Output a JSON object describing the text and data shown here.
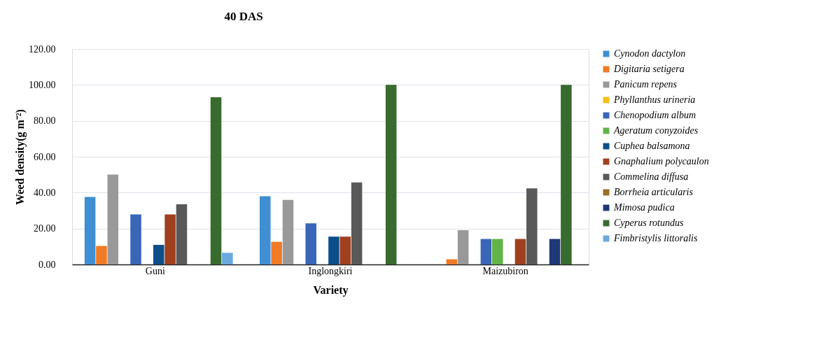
{
  "chart_data": {
    "type": "bar",
    "title": "40 DAS",
    "xlabel": "Variety",
    "ylabel": "Weed density(g m⁻²)",
    "categories": [
      "Guni",
      "Inglongkiri",
      "Maizubiron"
    ],
    "series": [
      {
        "name": "Cynodon dactylon",
        "color": "#3f8fd2",
        "values": [
          37.6,
          38.0,
          0
        ]
      },
      {
        "name": "Digitaria setigera",
        "color": "#f07a26",
        "values": [
          10.3,
          12.6,
          2.9
        ]
      },
      {
        "name": "Panicum repens",
        "color": "#999999",
        "values": [
          50.1,
          35.9,
          19.1
        ]
      },
      {
        "name": "Phyllanthus urineria",
        "color": "#f5c018",
        "values": [
          0,
          0,
          0
        ]
      },
      {
        "name": "Chenopodium album",
        "color": "#3a66b8",
        "values": [
          27.9,
          22.9,
          14.2
        ]
      },
      {
        "name": "Ageratum conyzoides",
        "color": "#62b34a",
        "values": [
          0,
          0,
          14.2
        ]
      },
      {
        "name": "Cuphea balsamona",
        "color": "#0c4e8a",
        "values": [
          10.9,
          15.5,
          0
        ]
      },
      {
        "name": "Gnaphalium polycaulon",
        "color": "#a0401f",
        "values": [
          27.9,
          15.5,
          14.2
        ]
      },
      {
        "name": "Commelina diffusa",
        "color": "#595959",
        "values": [
          33.5,
          45.7,
          42.4
        ]
      },
      {
        "name": "Borrheia articularis",
        "color": "#9b6d26",
        "values": [
          0,
          0,
          0
        ]
      },
      {
        "name": "Mimosa pudica",
        "color": "#1f3877",
        "values": [
          0,
          0,
          14.2
        ]
      },
      {
        "name": "Cyperus rotundus",
        "color": "#386b2e",
        "values": [
          93.1,
          100.0,
          100.0
        ]
      },
      {
        "name": "Fimbristylis littoralis",
        "color": "#6aa8e0",
        "values": [
          6.5,
          0,
          0
        ]
      }
    ],
    "ylim": [
      0,
      120
    ],
    "yticks": [
      {
        "value": 0,
        "label": "0.00"
      },
      {
        "value": 20,
        "label": "20.00"
      },
      {
        "value": 40,
        "label": "40.00"
      },
      {
        "value": 60,
        "label": "60.00"
      },
      {
        "value": 80,
        "label": "80.00"
      },
      {
        "value": 100,
        "label": "100.00"
      },
      {
        "value": 120,
        "label": "120.00"
      }
    ],
    "grid": "y",
    "legend": "right"
  }
}
